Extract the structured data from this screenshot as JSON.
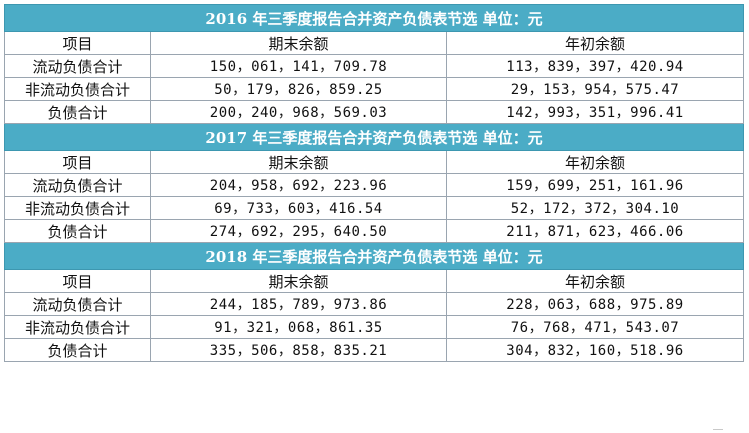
{
  "sections": [
    {
      "title": "2016 年三季度报告合并资产负债表节选  单位：元",
      "headers": [
        "项目",
        "期末余额",
        "年初余额"
      ],
      "rows": [
        [
          "流动负债合计",
          "150，061，141，709.78",
          "113，839，397，420.94"
        ],
        [
          "非流动负债合计",
          "50，179，826，859.25",
          "29，153，954，575.47"
        ],
        [
          "负债合计",
          "200，240，968，569.03",
          "142，993，351，996.41"
        ]
      ]
    },
    {
      "title": "2017 年三季度报告合并资产负债表节选  单位：元",
      "headers": [
        "项目",
        "期末余额",
        "年初余额"
      ],
      "rows": [
        [
          "流动负债合计",
          "204，958，692，223.96",
          "159，699，251，161.96"
        ],
        [
          "非流动负债合计",
          "69，733，603，416.54",
          "52，172，372，304.10"
        ],
        [
          "负债合计",
          "274，692，295，640.50",
          "211，871，623，466.06"
        ]
      ]
    },
    {
      "title": "2018 年三季度报告合并资产负债表节选  单位：元",
      "headers": [
        "项目",
        "期末余额",
        "年初余额"
      ],
      "rows": [
        [
          "流动负债合计",
          "244，185，789，973.86",
          "228，063，688，975.89"
        ],
        [
          "非流动负债合计",
          "91，321，068，861.35",
          "76，768，471，543.07"
        ],
        [
          "负债合计",
          "335，506，858，835.21",
          "304，832，160，518.96"
        ]
      ]
    }
  ],
  "colors": {
    "title_background": "#4bacc6",
    "title_text": "#ffffff",
    "grid_line": "#9aa5b0"
  }
}
